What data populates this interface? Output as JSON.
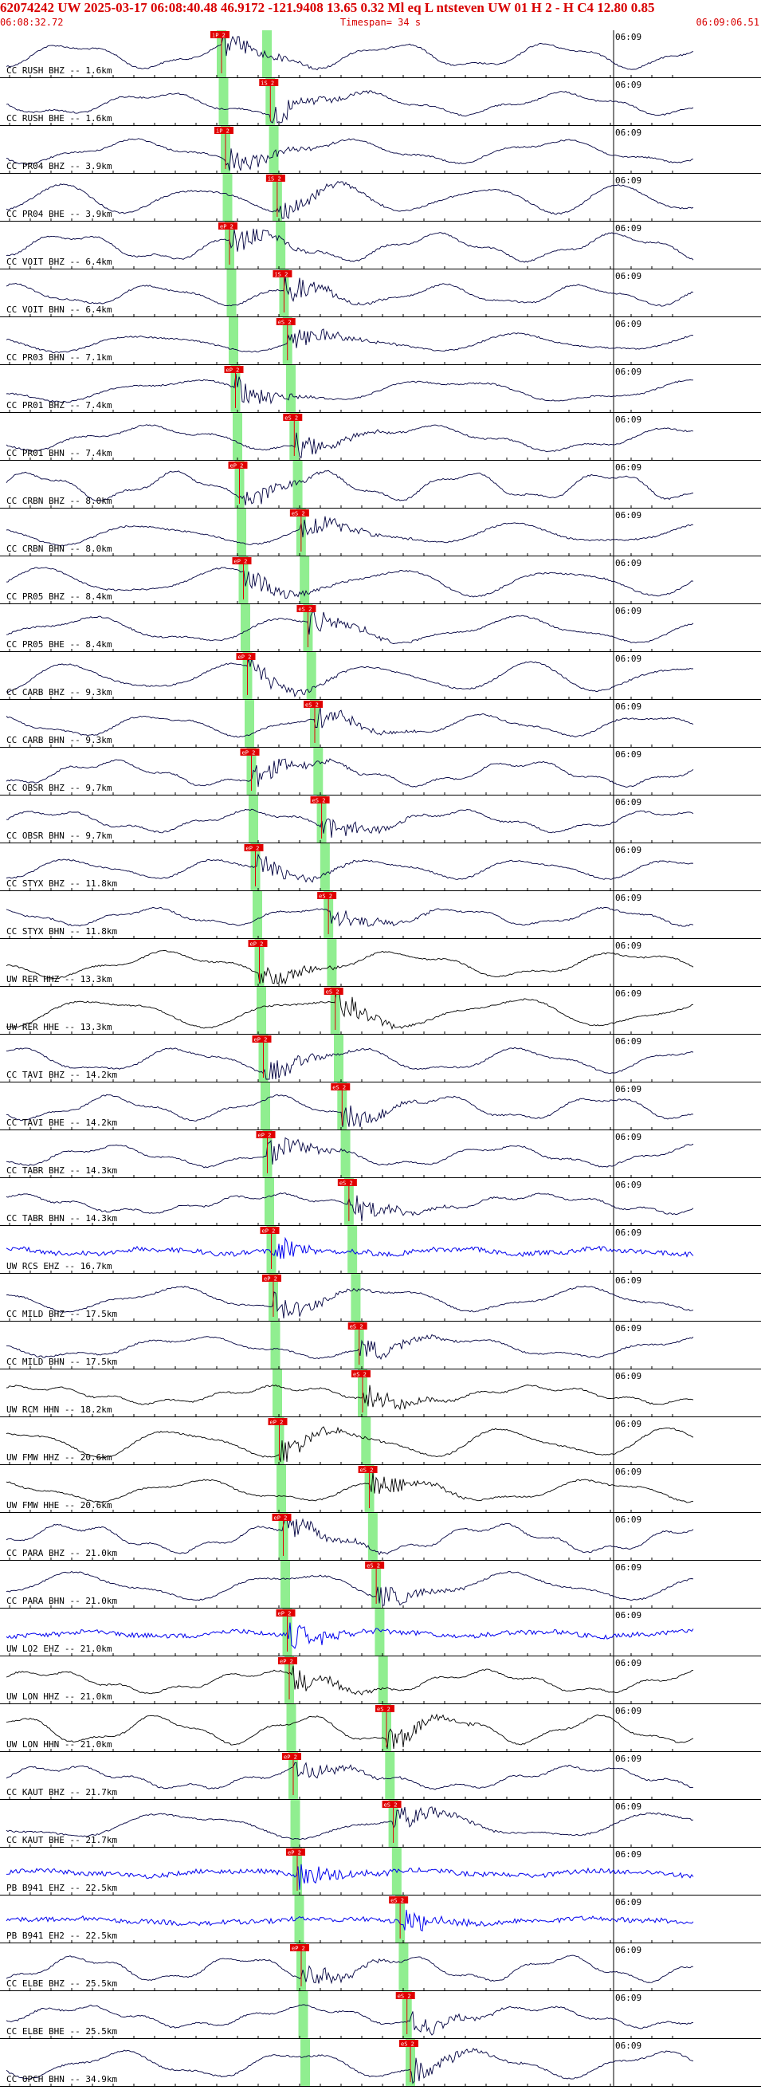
{
  "header": {
    "event_line": "62074242 UW 2025-03-17 06:08:40.48   46.9172 -121.9408  13.65  0.32 Ml  eq  L ntsteven UW 01  H   2  -  H C4   12.80  0.85",
    "start_time": "06:08:32.72",
    "timespan": "Timespan=  34 s",
    "end_time": "06:09:06.51"
  },
  "colors": {
    "header_text": "#d80000",
    "trace_dark": "#000040",
    "trace_blue": "#0000ee",
    "trace_black": "#000000",
    "pick_marker": "#e00000",
    "window_band": "#90ee90"
  },
  "minute_label": "06:09",
  "traces": [
    {
      "label": "CC RUSH BHZ -- 1.6km",
      "color": "dark",
      "pick": "iP 2"
    },
    {
      "label": "CC RUSH BHE -- 1.6km",
      "color": "dark",
      "pick": "iS 2"
    },
    {
      "label": "CC PR04 BHZ -- 3.9km",
      "color": "dark",
      "pick": "iP 2"
    },
    {
      "label": "CC PR04 BHE -- 3.9km",
      "color": "dark",
      "pick": "iS 2"
    },
    {
      "label": "CC VOIT BHZ -- 6.4km",
      "color": "dark",
      "pick": "eP 2"
    },
    {
      "label": "CC VOIT BHN -- 6.4km",
      "color": "dark",
      "pick": "iS 2"
    },
    {
      "label": "CC PR03 BHN -- 7.1km",
      "color": "dark",
      "pick": "eS 2"
    },
    {
      "label": "CC PR01 BHZ -- 7.4km",
      "color": "dark",
      "pick": "eP 2"
    },
    {
      "label": "CC PR01 BHN -- 7.4km",
      "color": "dark",
      "pick": "eS 2"
    },
    {
      "label": "CC CRBN BHZ -- 8.0km",
      "color": "dark",
      "pick": "eP 2"
    },
    {
      "label": "CC CRBN BHN -- 8.0km",
      "color": "dark",
      "pick": "eS 2"
    },
    {
      "label": "CC PR05 BHZ -- 8.4km",
      "color": "dark",
      "pick": "eP 2"
    },
    {
      "label": "CC PR05 BHE -- 8.4km",
      "color": "dark",
      "pick": "eS 2"
    },
    {
      "label": "CC CARB BHZ -- 9.3km",
      "color": "dark",
      "pick": "eP 2"
    },
    {
      "label": "CC CARB BHN -- 9.3km",
      "color": "dark",
      "pick": "eS 2"
    },
    {
      "label": "CC OBSR BHZ -- 9.7km",
      "color": "dark",
      "pick": "eP 2"
    },
    {
      "label": "CC OBSR BHN -- 9.7km",
      "color": "dark",
      "pick": "eS 2"
    },
    {
      "label": "CC STYX BHZ -- 11.8km",
      "color": "dark",
      "pick": "eP 2"
    },
    {
      "label": "CC STYX BHN -- 11.8km",
      "color": "dark",
      "pick": "eS 2"
    },
    {
      "label": "UW RER HHZ -- 13.3km",
      "color": "black",
      "pick": "eP 2"
    },
    {
      "label": "UW RER HHE -- 13.3km",
      "color": "black",
      "pick": "eS 2"
    },
    {
      "label": "CC TAVI BHZ -- 14.2km",
      "color": "dark",
      "pick": "eP 2"
    },
    {
      "label": "CC TAVI BHE -- 14.2km",
      "color": "dark",
      "pick": "eS 2"
    },
    {
      "label": "CC TABR BHZ -- 14.3km",
      "color": "dark",
      "pick": "eP 2"
    },
    {
      "label": "CC TABR BHN -- 14.3km",
      "color": "dark",
      "pick": "eS 2"
    },
    {
      "label": "UW RCS EHZ -- 16.7km",
      "color": "blue",
      "pick": "eP 2"
    },
    {
      "label": "CC MILD BHZ -- 17.5km",
      "color": "dark",
      "pick": "eP 2"
    },
    {
      "label": "CC MILD BHN -- 17.5km",
      "color": "dark",
      "pick": "eS 2"
    },
    {
      "label": "UW RCM HHN -- 18.2km",
      "color": "black",
      "pick": "eS 2"
    },
    {
      "label": "UW FMW HHZ -- 20.6km",
      "color": "black",
      "pick": "eP 2"
    },
    {
      "label": "UW FMW HHE -- 20.6km",
      "color": "black",
      "pick": "eS 2"
    },
    {
      "label": "CC PARA BHZ -- 21.0km",
      "color": "dark",
      "pick": "eP 2"
    },
    {
      "label": "CC PARA BHN -- 21.0km",
      "color": "dark",
      "pick": "eS 2"
    },
    {
      "label": "UW LO2 EHZ -- 21.0km",
      "color": "blue",
      "pick": "eP 2"
    },
    {
      "label": "UW LON HHZ -- 21.0km",
      "color": "black",
      "pick": "eP 2"
    },
    {
      "label": "UW LON HHN -- 21.0km",
      "color": "black",
      "pick": "eS 2"
    },
    {
      "label": "CC KAUT BHZ -- 21.7km",
      "color": "dark",
      "pick": "eP 2"
    },
    {
      "label": "CC KAUT BHE -- 21.7km",
      "color": "dark",
      "pick": "eS 2"
    },
    {
      "label": "PB B941 EHZ -- 22.5km",
      "color": "blue",
      "pick": "eP 2"
    },
    {
      "label": "PB B941 EH2 -- 22.5km",
      "color": "blue",
      "pick": "eS 2"
    },
    {
      "label": "CC ELBE BHZ -- 25.5km",
      "color": "dark",
      "pick": "eP 2"
    },
    {
      "label": "CC ELBE BHE -- 25.5km",
      "color": "dark",
      "pick": "eS 2"
    },
    {
      "label": "CC OPCH BHN -- 34.9km",
      "color": "dark",
      "pick": "eS 2"
    }
  ]
}
